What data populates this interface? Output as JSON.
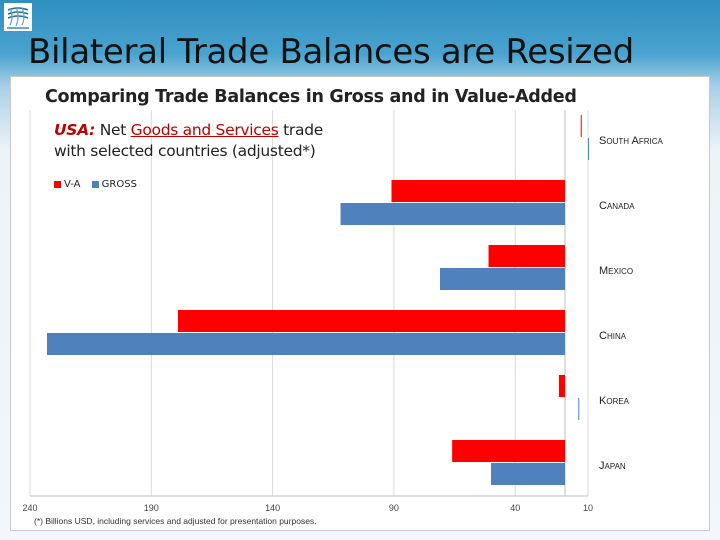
{
  "slide_title": "Bilateral Trade Balances are Resized",
  "colors": {
    "va": "#ff0000",
    "gross": "#4f81bd",
    "grid": "#d9d9d9",
    "header_blue": "#2f8fbf"
  },
  "chart_data": {
    "type": "bar",
    "orientation": "horizontal",
    "title": "Comparing Trade Balances in Gross and in Value-Added",
    "subtitle_country": "USA:",
    "subtitle_pre": "Net",
    "subtitle_highlight": "Goods and Services",
    "subtitle_post": "trade with selected countries (adjusted*)",
    "categories": [
      "South Africa",
      "Canada",
      "Mexico",
      "China",
      "Korea",
      "Japan"
    ],
    "series": [
      {
        "name": "V-A",
        "color": "#ff0000",
        "values": [
          13,
          91,
          51,
          179,
          22,
          66
        ]
      },
      {
        "name": "GROSS",
        "color": "#4f81bd",
        "values": [
          10,
          112,
          71,
          233,
          14,
          50
        ]
      }
    ],
    "x_axis": {
      "reversed": true,
      "range": [
        240,
        10
      ],
      "ticks": [
        "240",
        "190",
        "140",
        "90",
        "40",
        "10"
      ]
    },
    "grid": true,
    "legend_position": "top-left",
    "footnote": "(*) Billions USD, including services and adjusted for presentation purposes."
  }
}
